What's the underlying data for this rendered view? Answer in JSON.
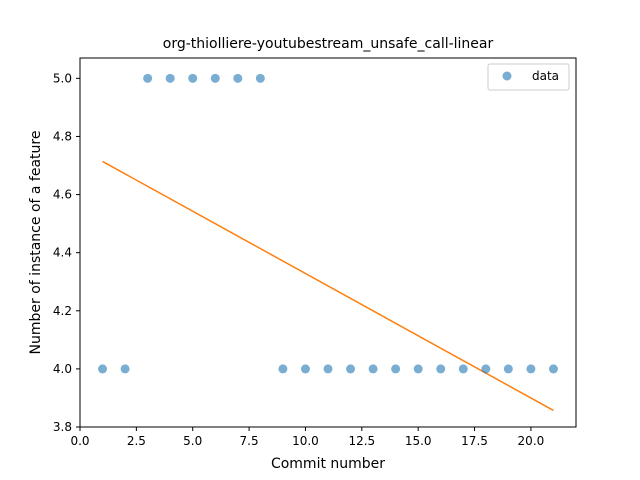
{
  "chart_data": {
    "type": "scatter",
    "title": "org-thiolliere-youtubestream_unsafe_call-linear",
    "xlabel": "Commit number",
    "ylabel": "Number of instance of a feature",
    "xlim": [
      0,
      22
    ],
    "ylim": [
      3.8,
      5.07
    ],
    "x_ticks": [
      0.0,
      2.5,
      5.0,
      7.5,
      10.0,
      12.5,
      15.0,
      17.5,
      20.0
    ],
    "x_tick_labels": [
      "0.0",
      "2.5",
      "5.0",
      "7.5",
      "10.0",
      "12.5",
      "15.0",
      "17.5",
      "20.0"
    ],
    "y_ticks": [
      3.8,
      4.0,
      4.2,
      4.4,
      4.6,
      4.8,
      5.0
    ],
    "y_tick_labels": [
      "3.8",
      "4.0",
      "4.2",
      "4.4",
      "4.6",
      "4.8",
      "5.0"
    ],
    "grid": false,
    "legend_position": "top-right",
    "series": [
      {
        "name": "data",
        "kind": "scatter",
        "color": "#1f77b4",
        "x": [
          1,
          2,
          3,
          4,
          5,
          6,
          7,
          8,
          9,
          10,
          11,
          12,
          13,
          14,
          15,
          16,
          17,
          18,
          19,
          20,
          21
        ],
        "y": [
          4,
          4,
          5,
          5,
          5,
          5,
          5,
          5,
          4,
          4,
          4,
          4,
          4,
          4,
          4,
          4,
          4,
          4,
          4,
          4,
          4
        ]
      },
      {
        "kind": "line",
        "color": "#ff7f0e",
        "x": [
          1,
          21
        ],
        "y": [
          4.714,
          3.857
        ]
      }
    ]
  }
}
